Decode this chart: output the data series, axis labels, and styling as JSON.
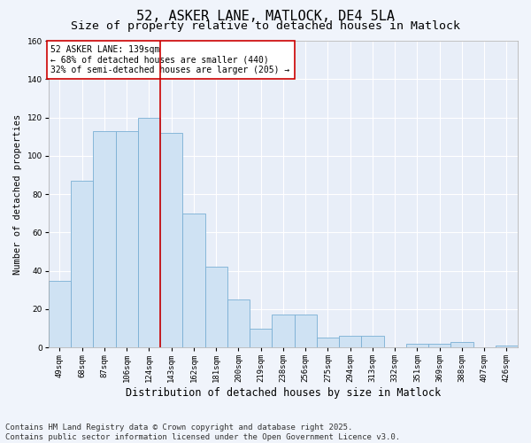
{
  "title1": "52, ASKER LANE, MATLOCK, DE4 5LA",
  "title2": "Size of property relative to detached houses in Matlock",
  "xlabel": "Distribution of detached houses by size in Matlock",
  "ylabel": "Number of detached properties",
  "categories": [
    "49sqm",
    "68sqm",
    "87sqm",
    "106sqm",
    "124sqm",
    "143sqm",
    "162sqm",
    "181sqm",
    "200sqm",
    "219sqm",
    "238sqm",
    "256sqm",
    "275sqm",
    "294sqm",
    "313sqm",
    "332sqm",
    "351sqm",
    "369sqm",
    "388sqm",
    "407sqm",
    "426sqm"
  ],
  "values": [
    35,
    87,
    113,
    113,
    120,
    112,
    70,
    42,
    25,
    10,
    17,
    17,
    5,
    6,
    6,
    0,
    2,
    2,
    3,
    0,
    1
  ],
  "bar_color": "#cfe2f3",
  "bar_edge_color": "#7aafd4",
  "vline_color": "#cc0000",
  "vline_x_index": 5,
  "annotation_line1": "52 ASKER LANE: 139sqm",
  "annotation_line2": "← 68% of detached houses are smaller (440)",
  "annotation_line3": "32% of semi-detached houses are larger (205) →",
  "annotation_box_facecolor": "#ffffff",
  "annotation_box_edgecolor": "#cc0000",
  "ylim": [
    0,
    160
  ],
  "yticks": [
    0,
    20,
    40,
    60,
    80,
    100,
    120,
    140,
    160
  ],
  "footer1": "Contains HM Land Registry data © Crown copyright and database right 2025.",
  "footer2": "Contains public sector information licensed under the Open Government Licence v3.0.",
  "fig_facecolor": "#f0f4fb",
  "axes_facecolor": "#e8eef8",
  "grid_color": "#ffffff",
  "title1_fontsize": 11,
  "title2_fontsize": 9.5,
  "xlabel_fontsize": 8.5,
  "ylabel_fontsize": 7.5,
  "tick_fontsize": 6.5,
  "annotation_fontsize": 7,
  "footer_fontsize": 6.5
}
